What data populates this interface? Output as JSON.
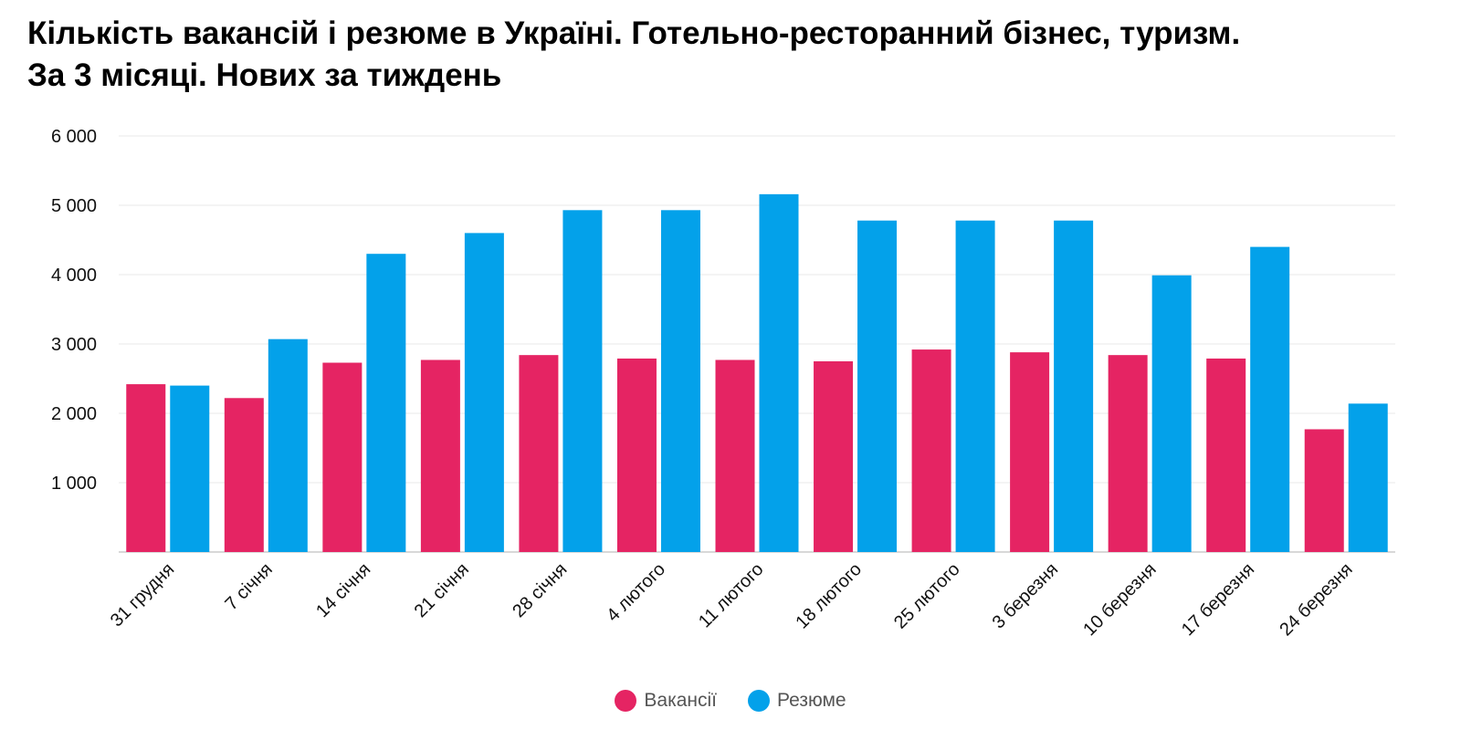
{
  "title": {
    "line1": "Кількість вакансій і резюме в Україні. Готельно-ресторанний бізнес, туризм.",
    "line2": "За 3 місяці. Нових за тиждень"
  },
  "colors": {
    "vacancies": "#E52463",
    "resumes": "#03A1EA",
    "grid": "#E8E8E8",
    "axis": "#CCCCCC"
  },
  "chart_data": {
    "type": "bar",
    "categories": [
      "31 грудня",
      "7 січня",
      "14 січня",
      "21 січня",
      "28 січня",
      "4 лютого",
      "11 лютого",
      "18 лютого",
      "25 лютого",
      "3 березня",
      "10 березня",
      "17 березня",
      "24 березня"
    ],
    "series": [
      {
        "name": "Вакансії",
        "values": [
          2420,
          2220,
          2730,
          2770,
          2840,
          2790,
          2770,
          2750,
          2920,
          2880,
          2840,
          2790,
          1770
        ]
      },
      {
        "name": "Резюме",
        "values": [
          2400,
          3070,
          4300,
          4600,
          4930,
          4930,
          5160,
          4780,
          4780,
          4780,
          3990,
          4400,
          2140
        ]
      }
    ],
    "ylim": [
      0,
      6000
    ],
    "yticks": [
      1000,
      2000,
      3000,
      4000,
      5000,
      6000
    ],
    "ytick_labels": [
      "1 000",
      "2 000",
      "3 000",
      "4 000",
      "5 000",
      "6 000"
    ],
    "grid": true,
    "legend_position": "bottom-center"
  }
}
